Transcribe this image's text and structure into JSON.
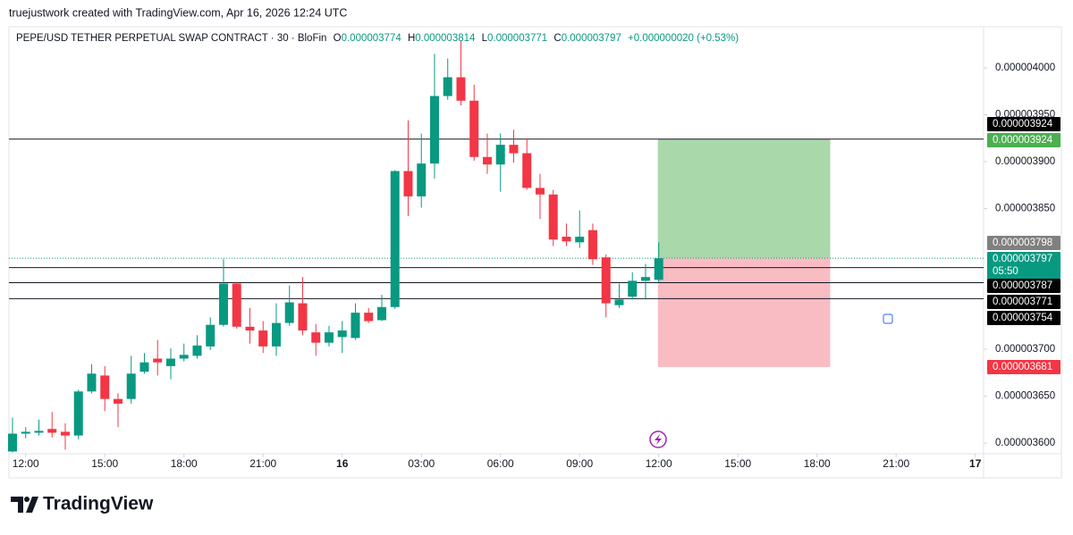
{
  "header": "truejustwork created with TradingView.com, Apr 16, 2026 12:24 UTC",
  "footer": "TradingView",
  "chart_data": {
    "type": "candlestick",
    "title": "PEPE/USD TETHER PERPETUAL SWAP CONTRACT · 30 · BloFin",
    "legend": {
      "open_label": "O",
      "open": "0.000003774",
      "high_label": "H",
      "high": "0.000003814",
      "low_label": "L",
      "low": "0.000003771",
      "close_label": "C",
      "close": "0.000003797",
      "change": "+0.000000020 (+0.53%)"
    },
    "up_color": "#089981",
    "down_color": "#f23645",
    "open": [
      3.591e-06,
      3.61e-06,
      3.611e-06,
      3.615e-06,
      3.612e-06,
      3.608e-06,
      3.655e-06,
      3.672e-06,
      3.647e-06,
      3.647e-06,
      3.676e-06,
      3.69e-06,
      3.682e-06,
      3.69e-06,
      3.693e-06,
      3.703e-06,
      3.726e-06,
      3.77e-06,
      3.724e-06,
      3.72e-06,
      3.703e-06,
      3.728e-06,
      3.749e-06,
      3.718e-06,
      3.707e-06,
      3.713e-06,
      3.712e-06,
      3.739e-06,
      3.731e-06,
      3.745e-06,
      3.89e-06,
      3.863e-06,
      3.898e-06,
      3.97e-06,
      3.99e-06,
      3.965e-06,
      3.905e-06,
      3.897e-06,
      3.918e-06,
      3.909e-06,
      3.872e-06,
      3.865e-06,
      3.82e-06,
      3.814e-06,
      3.827e-06,
      3.798e-06,
      3.747e-06,
      3.756e-06,
      3.773e-06,
      3.774e-06
    ],
    "high": [
      3.627e-06,
      3.617e-06,
      3.625e-06,
      3.633e-06,
      3.621e-06,
      3.657e-06,
      3.684e-06,
      3.682e-06,
      3.653e-06,
      3.693e-06,
      3.696e-06,
      3.71e-06,
      3.701e-06,
      3.706e-06,
      3.715e-06,
      3.734e-06,
      3.796e-06,
      3.772e-06,
      3.744e-06,
      3.73e-06,
      3.749e-06,
      3.768e-06,
      3.777e-06,
      3.727e-06,
      3.725e-06,
      3.73e-06,
      3.749e-06,
      3.744e-06,
      3.758e-06,
      3.891e-06,
      3.944e-06,
      3.93e-06,
      4.015e-06,
      4.01e-06,
      4.029e-06,
      3.982e-06,
      3.93e-06,
      3.93e-06,
      3.934e-06,
      3.925e-06,
      3.887e-06,
      3.87e-06,
      3.834e-06,
      3.848e-06,
      3.834e-06,
      3.801e-06,
      3.77e-06,
      3.782e-06,
      3.791e-06,
      3.814e-06
    ],
    "low": [
      3.59e-06,
      3.605e-06,
      3.608e-06,
      3.606e-06,
      3.593e-06,
      3.604e-06,
      3.653e-06,
      3.634e-06,
      3.617e-06,
      3.642e-06,
      3.674e-06,
      3.672e-06,
      3.668e-06,
      3.687e-06,
      3.69e-06,
      3.699e-06,
      3.724e-06,
      3.722e-06,
      3.706e-06,
      3.696e-06,
      3.693e-06,
      3.725e-06,
      3.715e-06,
      3.693e-06,
      3.703e-06,
      3.696e-06,
      3.71e-06,
      3.728e-06,
      3.73e-06,
      3.743e-06,
      3.842e-06,
      3.851e-06,
      3.882e-06,
      3.966e-06,
      3.96e-06,
      3.901e-06,
      3.887e-06,
      3.868e-06,
      3.899e-06,
      3.87e-06,
      3.839e-06,
      3.81e-06,
      3.81e-06,
      3.808e-06,
      3.79e-06,
      3.734e-06,
      3.744e-06,
      3.753e-06,
      3.753e-06,
      3.771e-06
    ],
    "close": [
      3.61e-06,
      3.612e-06,
      3.613e-06,
      3.611e-06,
      3.608e-06,
      3.655e-06,
      3.674e-06,
      3.647e-06,
      3.642e-06,
      3.674e-06,
      3.686e-06,
      3.686e-06,
      3.69e-06,
      3.694e-06,
      3.704e-06,
      3.726e-06,
      3.77e-06,
      3.724e-06,
      3.72e-06,
      3.703e-06,
      3.728e-06,
      3.75e-06,
      3.72e-06,
      3.707e-06,
      3.718e-06,
      3.72e-06,
      3.739e-06,
      3.73e-06,
      3.745e-06,
      3.89e-06,
      3.863e-06,
      3.898e-06,
      3.97e-06,
      3.99e-06,
      3.965e-06,
      3.905e-06,
      3.897e-06,
      3.918e-06,
      3.909e-06,
      3.872e-06,
      3.865e-06,
      3.817e-06,
      3.815e-06,
      3.82e-06,
      3.796e-06,
      3.749e-06,
      3.753e-06,
      3.773e-06,
      3.777e-06,
      3.797e-06
    ],
    "ylim": [
      3.5886e-06,
      4.0381e-06
    ],
    "yticks": [
      {
        "value": 3.6e-06,
        "label": "0.000003600"
      },
      {
        "value": 3.65e-06,
        "label": "0.000003650"
      },
      {
        "value": 3.7e-06,
        "label": "0.000003700"
      },
      {
        "value": 3.85e-06,
        "label": "0.000003850"
      },
      {
        "value": 3.9e-06,
        "label": "0.000003900"
      },
      {
        "value": 3.95e-06,
        "label": "0.000003950"
      },
      {
        "value": 4e-06,
        "label": "0.000004000"
      }
    ],
    "xlim": [
      -0.27,
      73.63
    ],
    "xticks": [
      {
        "value": 1,
        "label": "12:00"
      },
      {
        "value": 7,
        "label": "15:00"
      },
      {
        "value": 13,
        "label": "18:00"
      },
      {
        "value": 19,
        "label": "21:00"
      },
      {
        "value": 25,
        "label": "16"
      },
      {
        "value": 31,
        "label": "03:00"
      },
      {
        "value": 37,
        "label": "06:00"
      },
      {
        "value": 43,
        "label": "09:00"
      },
      {
        "value": 49,
        "label": "12:00"
      },
      {
        "value": 55,
        "label": "15:00"
      },
      {
        "value": 61,
        "label": "18:00"
      },
      {
        "value": 67,
        "label": "21:00"
      },
      {
        "value": 73,
        "label": "17"
      }
    ],
    "hlines": [
      3.924e-06,
      3.787e-06,
      3.771e-06,
      3.754e-06
    ],
    "position": {
      "target": 3.924e-06,
      "entry": 3.797e-06,
      "stop": 3.681e-06,
      "profit_color": "#a9d8aa",
      "loss_color": "#f8bcc2"
    },
    "countdown": "05:50",
    "price_labels": [
      {
        "value": 3.924e-06,
        "color": "#000000"
      },
      {
        "value": 3.924e-06,
        "color": "#4caf50"
      },
      {
        "value": 3.798e-06,
        "color": "#808080"
      },
      {
        "value": 3.797e-06,
        "color": "#089981"
      },
      {
        "value": 3.787e-06,
        "color": "#000000"
      },
      {
        "value": 3.771e-06,
        "color": "#000000"
      },
      {
        "value": 3.754e-06,
        "color": "#000000"
      },
      {
        "value": 3.681e-06,
        "color": "#f23645"
      }
    ]
  }
}
